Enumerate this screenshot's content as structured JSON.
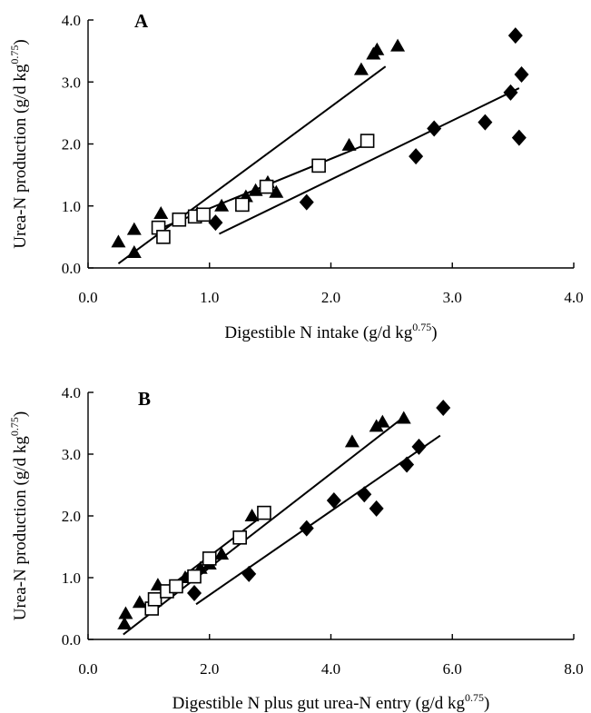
{
  "chart_data": [
    {
      "type": "scatter",
      "panel_label": "A",
      "xlabel": "Digestible N intake (g/d kg",
      "xlabel_sup": "0.75",
      "xlabel_tail": ")",
      "ylabel": "Urea-N production (g/d kg",
      "ylabel_sup": "0.75",
      "ylabel_tail": ")",
      "xlim": [
        0,
        4
      ],
      "ylim": [
        0,
        4
      ],
      "x_ticks": [
        0,
        1,
        2,
        3,
        4
      ],
      "x_tick_labels": [
        "0.0",
        "1.0",
        "2.0",
        "3.0",
        "4.0"
      ],
      "y_ticks": [
        0,
        1,
        2,
        3,
        4
      ],
      "y_tick_labels": [
        "0.0",
        "1.0",
        "2.0",
        "3.0",
        "4.0"
      ],
      "grid": false,
      "series": [
        {
          "marker": "triangle",
          "points": [
            [
              0.25,
              0.42
            ],
            [
              0.38,
              0.62
            ],
            [
              0.38,
              0.25
            ],
            [
              0.6,
              0.88
            ],
            [
              0.9,
              0.88
            ],
            [
              1.1,
              1.0
            ],
            [
              1.3,
              1.15
            ],
            [
              1.38,
              1.25
            ],
            [
              1.48,
              1.38
            ],
            [
              1.55,
              1.22
            ],
            [
              2.15,
              1.98
            ],
            [
              2.25,
              3.2
            ],
            [
              2.35,
              3.45
            ],
            [
              2.38,
              3.52
            ],
            [
              2.55,
              3.58
            ]
          ],
          "fit": [
            [
              0.25,
              0.07
            ],
            [
              2.45,
              3.25
            ]
          ]
        },
        {
          "marker": "open-square",
          "points": [
            [
              0.58,
              0.65
            ],
            [
              0.62,
              0.5
            ],
            [
              0.75,
              0.78
            ],
            [
              0.88,
              0.83
            ],
            [
              0.95,
              0.86
            ],
            [
              1.27,
              1.02
            ],
            [
              1.47,
              1.31
            ],
            [
              1.9,
              1.65
            ],
            [
              2.3,
              2.05
            ]
          ],
          "fit": [
            [
              0.55,
              0.6
            ],
            [
              2.3,
              2.0
            ]
          ]
        },
        {
          "marker": "diamond",
          "points": [
            [
              1.05,
              0.73
            ],
            [
              1.8,
              1.06
            ],
            [
              2.7,
              1.8
            ],
            [
              2.85,
              2.25
            ],
            [
              3.27,
              2.35
            ],
            [
              3.48,
              2.83
            ],
            [
              3.52,
              3.75
            ],
            [
              3.55,
              2.1
            ],
            [
              3.57,
              3.12
            ]
          ],
          "fit": [
            [
              1.08,
              0.55
            ],
            [
              3.55,
              2.9
            ]
          ]
        }
      ]
    },
    {
      "type": "scatter",
      "panel_label": "B",
      "xlabel": "Digestible N plus gut urea-N entry (g/d kg",
      "xlabel_sup": "0.75",
      "xlabel_tail": ")",
      "ylabel": "Urea-N production (g/d kg",
      "ylabel_sup": "0.75",
      "ylabel_tail": ")",
      "xlim": [
        0,
        8
      ],
      "ylim": [
        0,
        4
      ],
      "x_ticks": [
        0,
        2,
        4,
        6,
        8
      ],
      "x_tick_labels": [
        "0.0",
        "2.0",
        "4.0",
        "6.0",
        "8.0"
      ],
      "y_ticks": [
        0,
        1,
        2,
        3,
        4
      ],
      "y_tick_labels": [
        "0.0",
        "1.0",
        "2.0",
        "3.0",
        "4.0"
      ],
      "grid": false,
      "series": [
        {
          "marker": "triangle",
          "points": [
            [
              0.6,
              0.25
            ],
            [
              0.62,
              0.42
            ],
            [
              0.85,
              0.6
            ],
            [
              1.15,
              0.88
            ],
            [
              1.6,
              1.0
            ],
            [
              1.85,
              1.15
            ],
            [
              2.0,
              1.22
            ],
            [
              2.2,
              1.38
            ],
            [
              2.7,
              2.0
            ],
            [
              4.35,
              3.2
            ],
            [
              4.75,
              3.45
            ],
            [
              4.85,
              3.52
            ],
            [
              5.2,
              3.58
            ]
          ],
          "fit": [
            [
              0.58,
              0.08
            ],
            [
              5.2,
              3.6
            ]
          ]
        },
        {
          "marker": "open-square",
          "points": [
            [
              1.05,
              0.5
            ],
            [
              1.1,
              0.65
            ],
            [
              1.3,
              0.78
            ],
            [
              1.45,
              0.86
            ],
            [
              1.75,
              1.02
            ],
            [
              2.0,
              1.31
            ],
            [
              2.5,
              1.65
            ],
            [
              2.9,
              2.05
            ]
          ],
          "fit": [
            [
              1.0,
              0.6
            ],
            [
              2.9,
              2.02
            ]
          ]
        },
        {
          "marker": "diamond",
          "points": [
            [
              1.75,
              0.75
            ],
            [
              2.65,
              1.06
            ],
            [
              3.6,
              1.8
            ],
            [
              4.05,
              2.25
            ],
            [
              4.55,
              2.35
            ],
            [
              4.75,
              2.12
            ],
            [
              5.25,
              2.83
            ],
            [
              5.45,
              3.12
            ],
            [
              5.85,
              3.75
            ]
          ],
          "fit": [
            [
              1.78,
              0.57
            ],
            [
              5.8,
              3.3
            ]
          ]
        }
      ]
    }
  ]
}
